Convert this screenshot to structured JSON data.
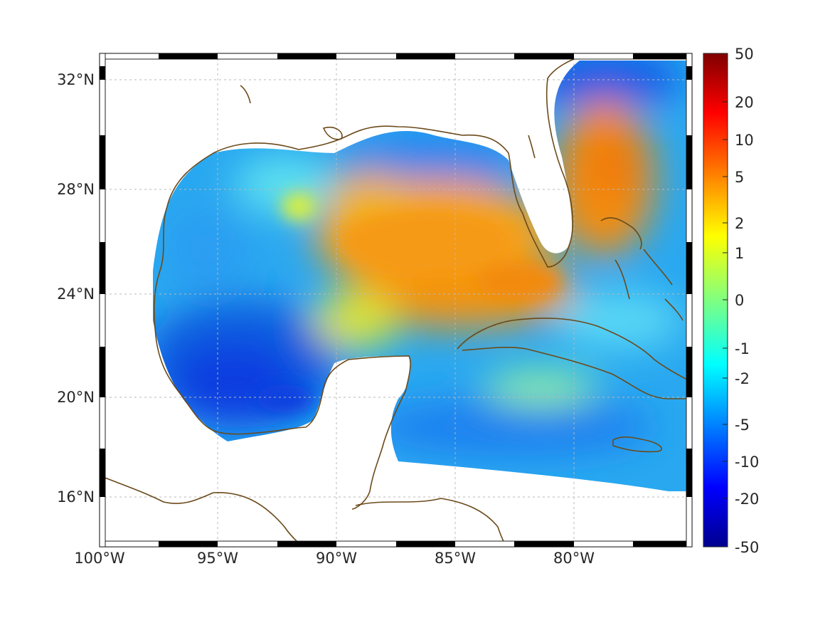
{
  "map": {
    "type": "heatmap",
    "x_ticks": [
      "100°W",
      "95°W",
      "90°W",
      "85°W",
      "80°W"
    ],
    "y_ticks": [
      "32°N",
      "28°N",
      "24°N",
      "20°N",
      "16°N"
    ],
    "lon_range": [
      -100,
      -75
    ],
    "lat_range": [
      14.2,
      33
    ],
    "grid": true,
    "colormap": "jet",
    "coastline_color": "#6b4a1a"
  },
  "colorbar": {
    "ticks": [
      "50",
      "20",
      "10",
      "5",
      "2",
      "1",
      "0",
      "-1",
      "-2",
      "-5",
      "-10",
      "-20",
      "-50"
    ]
  }
}
